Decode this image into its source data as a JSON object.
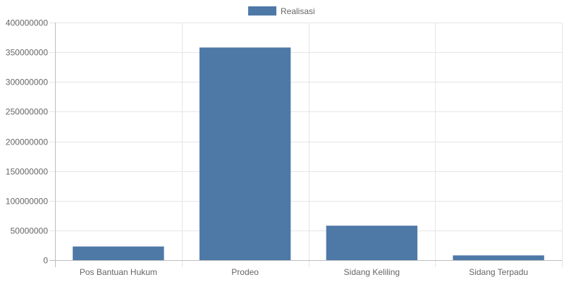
{
  "chart_data": {
    "type": "bar",
    "categories": [
      "Pos Bantuan Hukum",
      "Prodeo",
      "Sidang Keliling",
      "Sidang Terpadu"
    ],
    "series": [
      {
        "name": "Realisasi",
        "values": [
          23000000,
          358000000,
          58000000,
          8000000
        ],
        "color": "#4e79a7"
      }
    ],
    "ylim": [
      0,
      400000000
    ],
    "yticks": [
      0,
      50000000,
      100000000,
      150000000,
      200000000,
      250000000,
      300000000,
      350000000,
      400000000
    ],
    "grid": true,
    "legend": "top-center"
  }
}
